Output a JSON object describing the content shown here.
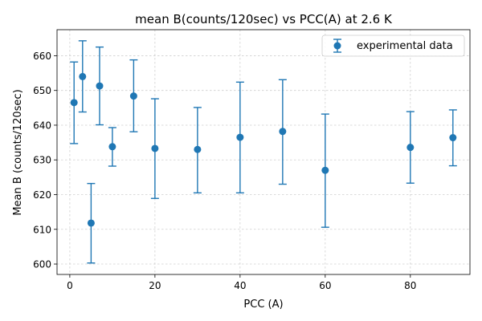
{
  "chart_data": {
    "type": "scatter",
    "title": "mean B(counts/120sec) vs PCC(A) at 2.6 K",
    "xlabel": "PCC (A)",
    "ylabel": "Mean B (counts/120sec)",
    "xlim": [
      -3,
      94
    ],
    "ylim": [
      597,
      667.5
    ],
    "xticks": [
      0,
      20,
      40,
      60,
      80
    ],
    "yticks": [
      600,
      610,
      620,
      630,
      640,
      650,
      660
    ],
    "grid": true,
    "legend_position": "upper right",
    "color": "#1f77b4",
    "series": [
      {
        "name": "experimental data",
        "x": [
          1,
          3,
          5,
          7,
          10,
          15,
          20,
          30,
          40,
          50,
          60,
          80,
          90
        ],
        "y": [
          646.5,
          654.0,
          611.8,
          651.3,
          633.8,
          648.4,
          633.3,
          633.0,
          636.5,
          638.2,
          627.0,
          633.6,
          636.4
        ],
        "err_low": [
          634.7,
          643.8,
          600.3,
          640.1,
          628.2,
          638.1,
          618.9,
          620.5,
          620.5,
          623.0,
          610.6,
          623.3,
          628.3
        ],
        "err_high": [
          658.2,
          664.3,
          623.2,
          662.5,
          639.3,
          658.8,
          647.6,
          645.1,
          652.4,
          653.1,
          643.2,
          643.9,
          644.4
        ]
      }
    ]
  }
}
